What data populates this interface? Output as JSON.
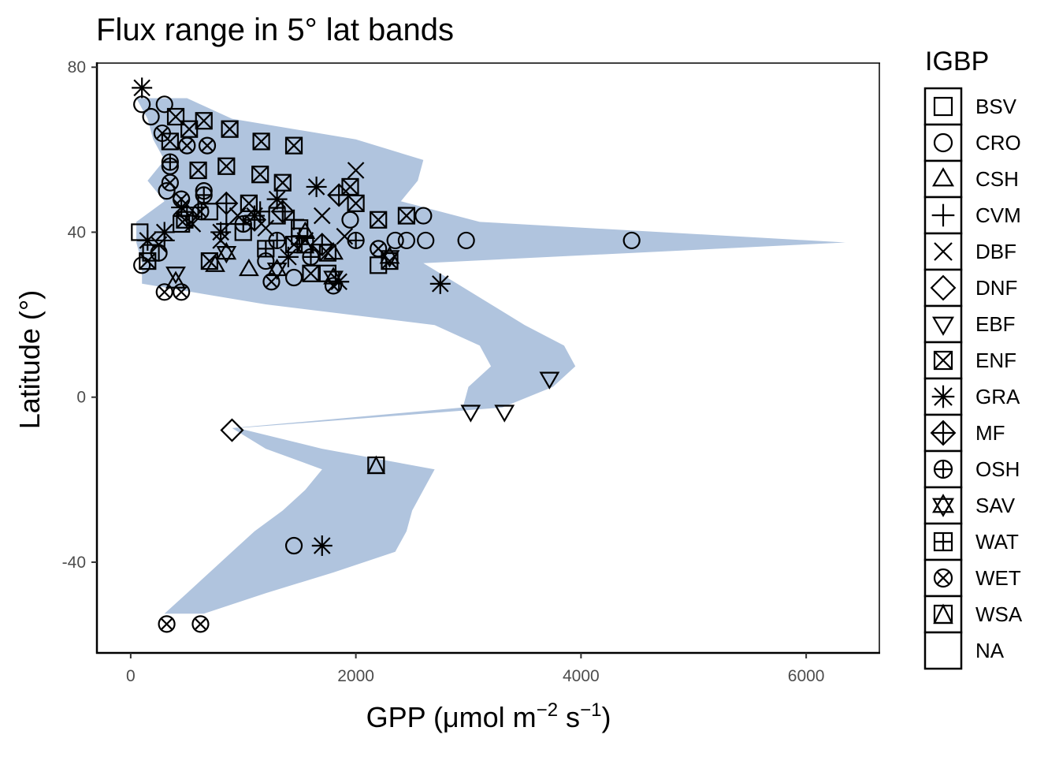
{
  "chart_data": {
    "type": "scatter",
    "title": "Flux range in 5° lat bands",
    "xlabel": {
      "text": "GPP (μmol m",
      "sup1": "−2",
      "mid": " s",
      "sup2": "−1",
      "end": ")"
    },
    "ylabel": "Latitude (°)",
    "xlim": [
      -300,
      6650
    ],
    "ylim": [
      -62,
      81
    ],
    "x_ticks": [
      0,
      2000,
      4000,
      6000
    ],
    "x_tick_labels": [
      "0",
      "2000",
      "4000",
      "6000"
    ],
    "y_ticks": [
      80,
      40,
      0,
      -40
    ],
    "y_tick_labels": [
      "80",
      "40",
      "0",
      "-40"
    ],
    "grid": false,
    "ribbon_color": "#b0c4de",
    "ribbon": [
      {
        "lat": 72.5,
        "min": 50,
        "max": 500
      },
      {
        "lat": 67.5,
        "min": 150,
        "max": 900
      },
      {
        "lat": 62.5,
        "min": 200,
        "max": 2000
      },
      {
        "lat": 57.5,
        "min": 300,
        "max": 2600
      },
      {
        "lat": 52.5,
        "min": 150,
        "max": 2550
      },
      {
        "lat": 47.5,
        "min": 300,
        "max": 2400
      },
      {
        "lat": 42.5,
        "min": 50,
        "max": 3100
      },
      {
        "lat": 37.5,
        "min": 50,
        "max": 6350
      },
      {
        "lat": 32.5,
        "min": 100,
        "max": 2600
      },
      {
        "lat": 27.5,
        "min": 100,
        "max": 2900
      },
      {
        "lat": 22.5,
        "min": 1200,
        "max": 3200
      },
      {
        "lat": 17.5,
        "min": 2700,
        "max": 3500
      },
      {
        "lat": 12.5,
        "min": 3100,
        "max": 3850
      },
      {
        "lat": 7.5,
        "min": 3200,
        "max": 3950
      },
      {
        "lat": 2.5,
        "min": 3000,
        "max": 3750
      },
      {
        "lat": -2.5,
        "min": 2950,
        "max": 3300
      },
      {
        "lat": -7.5,
        "min": 900,
        "max": 950
      },
      {
        "lat": -12.5,
        "min": 1200,
        "max": 1700
      },
      {
        "lat": -17.5,
        "min": 1700,
        "max": 2700
      },
      {
        "lat": -22.5,
        "min": 1550,
        "max": 2600
      },
      {
        "lat": -27.5,
        "min": 1350,
        "max": 2500
      },
      {
        "lat": -32.5,
        "min": 1100,
        "max": 2450
      },
      {
        "lat": -37.5,
        "min": 900,
        "max": 2350
      },
      {
        "lat": -42.5,
        "min": 700,
        "max": 1800
      },
      {
        "lat": -47.5,
        "min": 500,
        "max": 1200
      },
      {
        "lat": -52.5,
        "min": 300,
        "max": 650
      }
    ],
    "legend": {
      "title": "IGBP",
      "position": "right",
      "entries": [
        {
          "label": "BSV",
          "shape": "square"
        },
        {
          "label": "CRO",
          "shape": "circle"
        },
        {
          "label": "CSH",
          "shape": "triangle"
        },
        {
          "label": "CVM",
          "shape": "plus"
        },
        {
          "label": "DBF",
          "shape": "cross"
        },
        {
          "label": "DNF",
          "shape": "diamond"
        },
        {
          "label": "EBF",
          "shape": "triangle-down"
        },
        {
          "label": "ENF",
          "shape": "square-cross"
        },
        {
          "label": "GRA",
          "shape": "asterisk"
        },
        {
          "label": "MF",
          "shape": "diamond-plus"
        },
        {
          "label": "OSH",
          "shape": "circle-plus"
        },
        {
          "label": "SAV",
          "shape": "star-of-david"
        },
        {
          "label": "WAT",
          "shape": "square-plus"
        },
        {
          "label": "WET",
          "shape": "circle-cross"
        },
        {
          "label": "WSA",
          "shape": "square-triangle"
        },
        {
          "label": "NA",
          "shape": "none"
        }
      ]
    },
    "series": [
      {
        "name": "BSV",
        "points": [
          [
            80,
            40
          ],
          [
            180,
            35
          ],
          [
            450,
            42
          ],
          [
            700,
            45
          ],
          [
            1000,
            40
          ],
          [
            1300,
            44
          ],
          [
            1500,
            41
          ],
          [
            1750,
            30
          ],
          [
            2200,
            32
          ]
        ]
      },
      {
        "name": "CRO",
        "points": [
          [
            100,
            71
          ],
          [
            180,
            68
          ],
          [
            300,
            71
          ],
          [
            350,
            56
          ],
          [
            320,
            50
          ],
          [
            650,
            50
          ],
          [
            1200,
            33
          ],
          [
            1450,
            29
          ],
          [
            1950,
            43
          ],
          [
            2350,
            38
          ],
          [
            2450,
            38
          ],
          [
            2600,
            44
          ],
          [
            2620,
            38
          ],
          [
            2980,
            38
          ],
          [
            4450,
            38
          ],
          [
            1450,
            -36
          ],
          [
            100,
            32
          ],
          [
            250,
            35
          ]
        ]
      },
      {
        "name": "CSH",
        "points": [
          [
            400,
            28
          ],
          [
            750,
            32
          ],
          [
            1050,
            31
          ],
          [
            1550,
            40
          ],
          [
            1800,
            35
          ]
        ]
      },
      {
        "name": "CVM",
        "points": [
          [
            300,
            38
          ],
          [
            600,
            46
          ],
          [
            850,
            42
          ],
          [
            1150,
            45
          ],
          [
            1450,
            43
          ]
        ]
      },
      {
        "name": "DBF",
        "points": [
          [
            250,
            37
          ],
          [
            550,
            42
          ],
          [
            800,
            38
          ],
          [
            950,
            44
          ],
          [
            1200,
            41
          ],
          [
            1550,
            38
          ],
          [
            1700,
            44
          ],
          [
            2000,
            55
          ],
          [
            1900,
            39
          ]
        ]
      },
      {
        "name": "DNF",
        "points": [
          [
            900,
            -8
          ]
        ]
      },
      {
        "name": "EBF",
        "points": [
          [
            400,
            30
          ],
          [
            3020,
            -3.5
          ],
          [
            3320,
            -3.5
          ],
          [
            3720,
            4.5
          ]
        ]
      },
      {
        "name": "ENF",
        "points": [
          [
            400,
            68
          ],
          [
            650,
            67
          ],
          [
            880,
            65
          ],
          [
            520,
            65
          ],
          [
            1160,
            62
          ],
          [
            1450,
            61
          ],
          [
            350,
            62
          ],
          [
            600,
            55
          ],
          [
            850,
            56
          ],
          [
            1150,
            54
          ],
          [
            1350,
            52
          ],
          [
            1950,
            51
          ],
          [
            2000,
            47
          ],
          [
            2200,
            43
          ],
          [
            2450,
            44
          ],
          [
            2300,
            33
          ],
          [
            1600,
            30
          ],
          [
            1750,
            35
          ],
          [
            700,
            33
          ],
          [
            150,
            33
          ],
          [
            480,
            43
          ],
          [
            1050,
            47
          ],
          [
            1450,
            37
          ]
        ]
      },
      {
        "name": "GRA",
        "points": [
          [
            100,
            75
          ],
          [
            150,
            38
          ],
          [
            300,
            40
          ],
          [
            450,
            46
          ],
          [
            800,
            40
          ],
          [
            1100,
            44
          ],
          [
            1400,
            34
          ],
          [
            1650,
            51
          ],
          [
            1850,
            28
          ],
          [
            2750,
            27.5
          ],
          [
            1700,
            -36
          ],
          [
            1300,
            48
          ]
        ]
      },
      {
        "name": "MF",
        "points": [
          [
            500,
            44
          ],
          [
            850,
            47
          ],
          [
            1100,
            43
          ],
          [
            1350,
            45
          ],
          [
            1700,
            37
          ],
          [
            1850,
            49
          ]
        ]
      },
      {
        "name": "OSH",
        "points": [
          [
            350,
            57
          ],
          [
            650,
            49
          ],
          [
            1000,
            42
          ],
          [
            1300,
            38
          ],
          [
            1600,
            34
          ],
          [
            2000,
            38
          ]
        ]
      },
      {
        "name": "SAV",
        "points": [
          [
            850,
            35
          ],
          [
            1800,
            29
          ],
          [
            2300,
            34
          ],
          [
            1300,
            31
          ]
        ]
      },
      {
        "name": "WAT",
        "points": [
          [
            1200,
            36
          ],
          [
            1500,
            39
          ]
        ]
      },
      {
        "name": "WET",
        "points": [
          [
            280,
            64
          ],
          [
            500,
            61
          ],
          [
            680,
            61
          ],
          [
            350,
            52
          ],
          [
            450,
            48
          ],
          [
            620,
            45
          ],
          [
            1250,
            28
          ],
          [
            300,
            25.5
          ],
          [
            450,
            25.5
          ],
          [
            1800,
            27
          ],
          [
            2200,
            36
          ],
          [
            320,
            -55
          ],
          [
            620,
            -55
          ]
        ]
      },
      {
        "name": "WSA",
        "points": [
          [
            2180,
            -16.5
          ],
          [
            1550,
            37
          ]
        ]
      }
    ]
  }
}
